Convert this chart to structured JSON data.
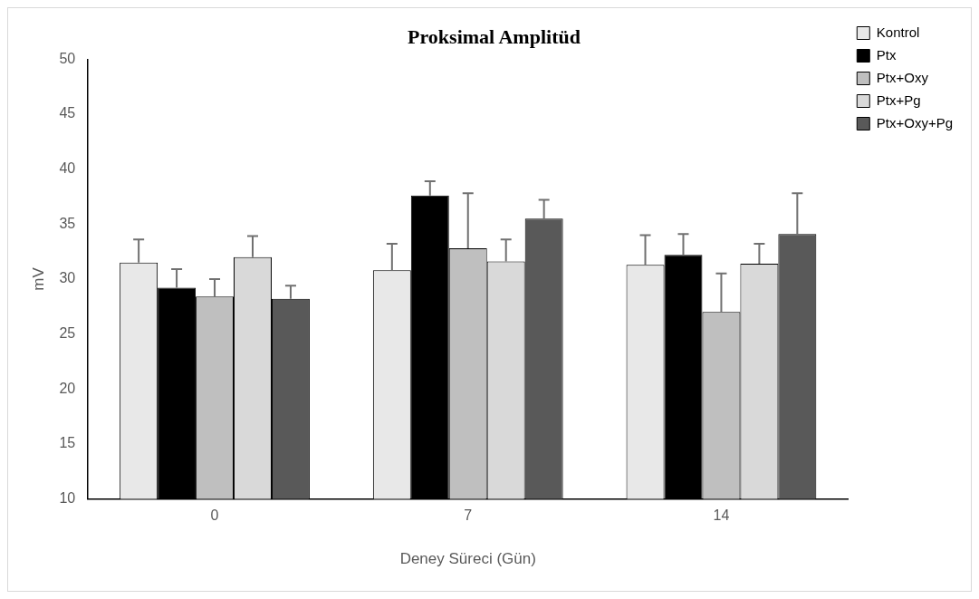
{
  "chart_data": {
    "type": "bar",
    "title": "Proksimal Amplitüd",
    "xlabel": "Deney Süreci (Gün)",
    "ylabel": "mV",
    "categories": [
      "0",
      "7",
      "14"
    ],
    "series": [
      {
        "name": "Kontrol",
        "color": "#e8e8e8",
        "values": [
          31.5,
          30.8,
          31.3
        ],
        "errors": [
          [
            31.5,
            33.6
          ],
          [
            30.8,
            33.2
          ],
          [
            31.3,
            34.0
          ]
        ]
      },
      {
        "name": "Ptx",
        "color": "#000000",
        "values": [
          29.2,
          37.6,
          32.2
        ],
        "errors": [
          [
            29.2,
            30.9
          ],
          [
            37.6,
            38.9
          ],
          [
            32.2,
            34.1
          ]
        ]
      },
      {
        "name": "Ptx+Oxy",
        "color": "#bfbfbf",
        "values": [
          28.4,
          32.8,
          27.0
        ],
        "errors": [
          [
            28.4,
            30.0
          ],
          [
            32.8,
            37.8
          ],
          [
            27.0,
            30.5
          ]
        ]
      },
      {
        "name": "Ptx+Pg",
        "color": "#d9d9d9",
        "values": [
          32.0,
          31.6,
          31.4
        ],
        "errors": [
          [
            32.0,
            33.9
          ],
          [
            31.6,
            33.6
          ],
          [
            31.4,
            33.2
          ]
        ]
      },
      {
        "name": "Ptx+Oxy+Pg",
        "color": "#595959",
        "values": [
          28.2,
          35.5,
          34.1
        ],
        "errors": [
          [
            28.2,
            29.4
          ],
          [
            35.5,
            37.2
          ],
          [
            34.1,
            37.8
          ]
        ]
      }
    ],
    "ylim": [
      10,
      50
    ],
    "yticks": [
      10,
      15,
      20,
      25,
      30,
      35,
      40,
      45,
      50
    ],
    "grid": false,
    "legend": "top right"
  }
}
